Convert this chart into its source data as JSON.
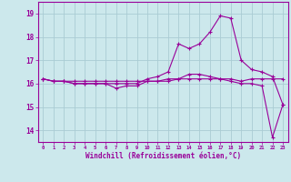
{
  "xlabel": "Windchill (Refroidissement éolien,°C)",
  "bg_color": "#cce8ec",
  "grid_color": "#aaccd4",
  "line_color": "#990099",
  "hours": [
    0,
    1,
    2,
    3,
    4,
    5,
    6,
    7,
    8,
    9,
    10,
    11,
    12,
    13,
    14,
    15,
    16,
    17,
    18,
    19,
    20,
    21,
    22,
    23
  ],
  "temp": [
    16.2,
    16.1,
    16.1,
    16.1,
    16.1,
    16.1,
    16.1,
    16.1,
    16.1,
    16.1,
    16.1,
    16.1,
    16.2,
    16.2,
    16.2,
    16.2,
    16.2,
    16.2,
    16.2,
    16.1,
    16.2,
    16.2,
    16.2,
    16.2
  ],
  "windchill": [
    16.2,
    16.1,
    16.1,
    16.0,
    16.0,
    16.0,
    16.0,
    15.8,
    15.9,
    15.9,
    16.1,
    16.1,
    16.1,
    16.2,
    16.4,
    16.4,
    16.3,
    16.2,
    16.1,
    16.0,
    16.0,
    15.9,
    13.7,
    15.1
  ],
  "temp2": [
    16.2,
    16.1,
    16.1,
    16.0,
    16.0,
    16.0,
    16.0,
    16.0,
    16.0,
    16.0,
    16.2,
    16.3,
    16.5,
    17.7,
    17.5,
    17.7,
    18.2,
    18.9,
    18.8,
    17.0,
    16.6,
    16.5,
    16.3,
    15.1
  ],
  "ylim": [
    13.5,
    19.5
  ],
  "yticks": [
    14,
    15,
    16,
    17,
    18,
    19
  ]
}
